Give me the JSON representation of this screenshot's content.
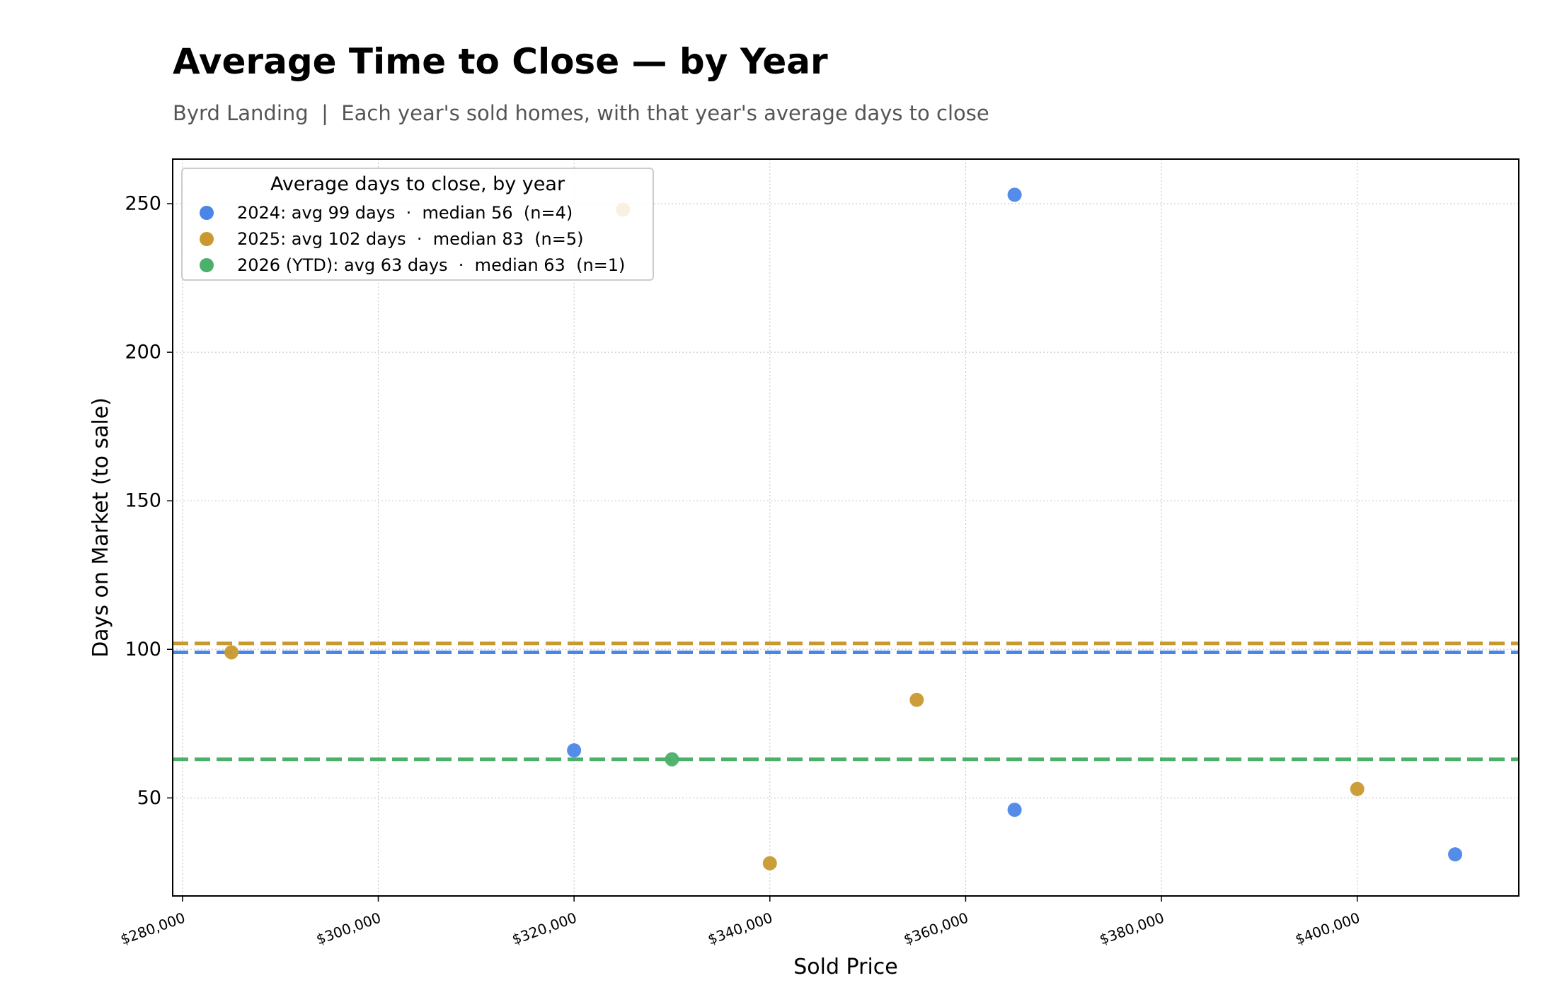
{
  "chart_data": {
    "type": "scatter",
    "title": "Average Time to Close — by Year",
    "subtitle": "Byrd Landing  |  Each year's sold homes, with that year's average days to close",
    "xlabel": "Sold Price",
    "ylabel": "Days on Market (to sale)",
    "xlim": [
      279000,
      416500
    ],
    "ylim": [
      17,
      265
    ],
    "x_ticks": [
      280000,
      300000,
      320000,
      340000,
      360000,
      380000,
      400000
    ],
    "x_tick_labels": [
      "$280,000",
      "$300,000",
      "$320,000",
      "$340,000",
      "$360,000",
      "$380,000",
      "$400,000"
    ],
    "y_ticks": [
      50,
      100,
      150,
      200,
      250
    ],
    "y_tick_labels": [
      "50",
      "100",
      "150",
      "200",
      "250"
    ],
    "grid": true,
    "legend": {
      "title": "Average days to close, by year",
      "placement": "top-left"
    },
    "series": [
      {
        "name": "2024: avg 99 days  ·  median 56  (n=4)",
        "color": "#4a86e8",
        "points": [
          {
            "x": 320000,
            "y": 66
          },
          {
            "x": 365000,
            "y": 253
          },
          {
            "x": 365000,
            "y": 46
          },
          {
            "x": 410000,
            "y": 31
          }
        ],
        "average": 99
      },
      {
        "name": "2025: avg 102 days  ·  median 83  (n=5)",
        "color": "#c9992f",
        "points": [
          {
            "x": 285000,
            "y": 99
          },
          {
            "x": 325000,
            "y": 248
          },
          {
            "x": 340000,
            "y": 28
          },
          {
            "x": 355000,
            "y": 83
          },
          {
            "x": 400000,
            "y": 53
          }
        ],
        "average": 102
      },
      {
        "name": "2026 (YTD): avg 63 days  ·  median 63  (n=1)",
        "color": "#4caf6a",
        "points": [
          {
            "x": 330000,
            "y": 63
          }
        ],
        "average": 63
      }
    ]
  }
}
